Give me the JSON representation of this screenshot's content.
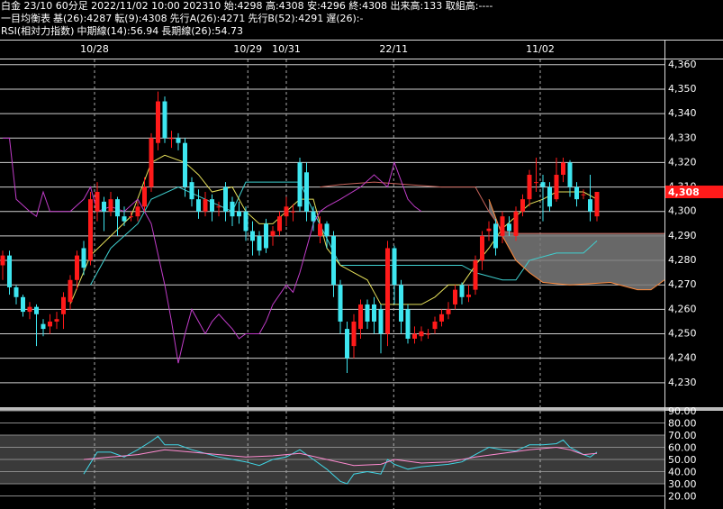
{
  "chart_data": [
    {
      "type": "candlestick",
      "title": "白金 23/10 60分足 2022/11/02 10:00 202310 始:4298 高:4308 安:4296 終:4308 出来高:133 取組高:----",
      "indicator": "一目均衡表",
      "up_color": "#ff1a1a",
      "down_color": "#3ee6f0",
      "cloud_color": "#7a7a7a",
      "open": [
        4278,
        4282,
        4269,
        4265,
        4259,
        4261,
        4254,
        4253,
        4255,
        4258,
        4263,
        4272,
        4285,
        4280,
        4300,
        4304,
        4300,
        4305,
        4298,
        4298,
        4298,
        4302,
        4310,
        4328,
        4345,
        4330,
        4330,
        4328,
        4312,
        4305,
        4300,
        4305,
        4302,
        4310,
        4304,
        4300,
        4300,
        4292,
        4290,
        4295,
        4290,
        4292,
        4298,
        4300,
        4320,
        4316,
        4300,
        4290,
        4295,
        4290,
        4270,
        4252,
        4245,
        4252,
        4262,
        4262,
        4260,
        4250,
        4285,
        4270,
        4260,
        4248,
        4249,
        4250,
        4252,
        4255,
        4258,
        4262,
        4270,
        4265,
        4268,
        4280,
        4292,
        4295,
        4290,
        4295,
        4290,
        4300,
        4305,
        4312,
        4312,
        4310,
        4305,
        4315,
        4320,
        4310,
        4307,
        4305,
        4298
      ],
      "high": [
        4284,
        4284,
        4270,
        4266,
        4263,
        4262,
        4256,
        4258,
        4259,
        4267,
        4274,
        4284,
        4288,
        4308,
        4312,
        4306,
        4308,
        4306,
        4302,
        4300,
        4304,
        4314,
        4332,
        4349,
        4347,
        4333,
        4332,
        4330,
        4314,
        4309,
        4308,
        4307,
        4304,
        4312,
        4306,
        4304,
        4302,
        4296,
        4292,
        4297,
        4294,
        4300,
        4306,
        4303,
        4322,
        4320,
        4302,
        4298,
        4296,
        4292,
        4272,
        4255,
        4258,
        4264,
        4264,
        4265,
        4262,
        4288,
        4286,
        4272,
        4262,
        4253,
        4253,
        4252,
        4257,
        4260,
        4263,
        4270,
        4271,
        4270,
        4282,
        4292,
        4296,
        4297,
        4300,
        4298,
        4302,
        4307,
        4317,
        4322,
        4315,
        4312,
        4322,
        4322,
        4321,
        4312,
        4309,
        4315,
        4308
      ],
      "low": [
        4272,
        4266,
        4262,
        4257,
        4256,
        4245,
        4249,
        4250,
        4252,
        4252,
        4260,
        4268,
        4274,
        4278,
        4296,
        4292,
        4298,
        4290,
        4294,
        4296,
        4296,
        4300,
        4308,
        4325,
        4328,
        4326,
        4325,
        4306,
        4302,
        4297,
        4298,
        4296,
        4298,
        4296,
        4294,
        4295,
        4288,
        4282,
        4282,
        4283,
        4286,
        4290,
        4294,
        4296,
        4300,
        4296,
        4292,
        4287,
        4285,
        4265,
        4250,
        4234,
        4240,
        4248,
        4252,
        4250,
        4242,
        4245,
        4262,
        4250,
        4246,
        4246,
        4247,
        4248,
        4250,
        4253,
        4256,
        4260,
        4262,
        4263,
        4266,
        4276,
        4288,
        4282,
        4287,
        4290,
        4288,
        4298,
        4302,
        4308,
        4296,
        4300,
        4304,
        4312,
        4306,
        4302,
        4305,
        4296,
        4296
      ],
      "close": [
        4282,
        4269,
        4265,
        4259,
        4261,
        4258,
        4252,
        4255,
        4256,
        4265,
        4272,
        4282,
        4277,
        4305,
        4308,
        4300,
        4305,
        4298,
        4296,
        4298,
        4302,
        4310,
        4330,
        4345,
        4330,
        4330,
        4328,
        4310,
        4305,
        4300,
        4305,
        4300,
        4302,
        4300,
        4298,
        4298,
        4292,
        4288,
        4284,
        4285,
        4292,
        4298,
        4302,
        4300,
        4302,
        4300,
        4296,
        4295,
        4290,
        4270,
        4255,
        4240,
        4255,
        4262,
        4255,
        4255,
        4250,
        4285,
        4270,
        4255,
        4248,
        4250,
        4251,
        4250,
        4255,
        4258,
        4260,
        4268,
        4265,
        4266,
        4280,
        4290,
        4293,
        4285,
        4298,
        4292,
        4300,
        4305,
        4315,
        4312,
        4310,
        4302,
        4315,
        4320,
        4310,
        4305,
        4307,
        4300,
        4308
      ],
      "series": [
        {
          "name": "基(26):4287",
          "color": "#3fd0d0",
          "x": [
            13,
            16,
            20,
            22,
            26,
            30,
            34,
            36,
            38,
            44,
            46,
            50,
            54,
            58,
            64,
            68,
            70,
            74,
            76,
            78,
            82,
            86,
            88
          ],
          "values": [
            4270,
            4285,
            4295,
            4305,
            4310,
            4305,
            4300,
            4312,
            4312,
            4312,
            4300,
            4278,
            4278,
            4278,
            4278,
            4278,
            4275,
            4272,
            4272,
            4280,
            4283,
            4283,
            4288
          ]
        },
        {
          "name": "転(9):4308",
          "color": "#e6e05a",
          "x": [
            10,
            13,
            16,
            19,
            22,
            24,
            27,
            29,
            31,
            34,
            36,
            38,
            40,
            42,
            44,
            46,
            48,
            50,
            52,
            54,
            56,
            58,
            60,
            62,
            64,
            66,
            68,
            70,
            72,
            74,
            76,
            78,
            80,
            82,
            84,
            86,
            88
          ],
          "values": [
            4262,
            4282,
            4290,
            4298,
            4320,
            4323,
            4320,
            4315,
            4308,
            4310,
            4300,
            4295,
            4295,
            4300,
            4305,
            4305,
            4285,
            4278,
            4275,
            4272,
            4262,
            4262,
            4262,
            4262,
            4265,
            4270,
            4270,
            4278,
            4285,
            4293,
            4298,
            4303,
            4305,
            4308,
            4308,
            4308,
            4305
          ]
        },
        {
          "name": "先行A(26):4271",
          "color": "#ff8a3d",
          "x": [
            72,
            74,
            76,
            78,
            80,
            84,
            90,
            94,
            96,
            98
          ],
          "values": [
            4305,
            4290,
            4280,
            4275,
            4271,
            4270,
            4271,
            4268,
            4268,
            4272
          ]
        },
        {
          "name": "先行B(52):4291",
          "color": "#c8645a",
          "x": [
            47,
            50,
            55,
            60,
            65,
            70,
            72,
            74,
            76,
            88,
            98
          ],
          "values": [
            4310,
            4311,
            4312,
            4311,
            4310,
            4310,
            4300,
            4292,
            4291,
            4291,
            4291
          ]
        },
        {
          "name": "遅(26):-",
          "color": "#c03cc8",
          "x": [
            0,
            1,
            2,
            4,
            5,
            6,
            7,
            10,
            12,
            13,
            14,
            16,
            18,
            20,
            21,
            22,
            24,
            25,
            26,
            27,
            28,
            30,
            31,
            32,
            34,
            35,
            36,
            38,
            39,
            40,
            42,
            43,
            44,
            46,
            47,
            48,
            50,
            53,
            55,
            57,
            58,
            60,
            61,
            62
          ],
          "values": [
            4330,
            4330,
            4305,
            4300,
            4298,
            4308,
            4300,
            4300,
            4305,
            4310,
            4300,
            4302,
            4300,
            4305,
            4300,
            4295,
            4270,
            4255,
            4238,
            4250,
            4260,
            4250,
            4255,
            4258,
            4252,
            4248,
            4250,
            4250,
            4255,
            4262,
            4270,
            4267,
            4275,
            4295,
            4300,
            4302,
            4305,
            4310,
            4315,
            4310,
            4320,
            4305,
            4302,
            4300
          ]
        }
      ],
      "xlim": [
        -0.4,
        98
      ],
      "xticks": [
        {
          "value": 13.6,
          "label": "10/28"
        },
        {
          "value": 36.3,
          "label": "10/29"
        },
        {
          "value": 42,
          "label": "10/31"
        },
        {
          "value": 57.9,
          "label": "22/11"
        },
        {
          "value": 79.6,
          "label": "11/02"
        }
      ],
      "ylim": [
        4220,
        4362.5
      ],
      "yticks": [
        {
          "value": 4230,
          "label": "4,230"
        },
        {
          "value": 4240,
          "label": "4,240"
        },
        {
          "value": 4250,
          "label": "4,250"
        },
        {
          "value": 4260,
          "label": "4,260"
        },
        {
          "value": 4270,
          "label": "4,270"
        },
        {
          "value": 4280,
          "label": "4,280"
        },
        {
          "value": 4290,
          "label": "4,290"
        },
        {
          "value": 4300,
          "label": "4,300"
        },
        {
          "value": 4310,
          "label": "4,310"
        },
        {
          "value": 4320,
          "label": "4,320"
        },
        {
          "value": 4330,
          "label": "4,330"
        },
        {
          "value": 4340,
          "label": "4,340"
        },
        {
          "value": 4350,
          "label": "4,350"
        },
        {
          "value": 4360,
          "label": "4,360"
        }
      ],
      "last_price": {
        "value": 4308,
        "label": "4,308"
      },
      "grid": true
    },
    {
      "type": "line",
      "title": "RSI(相対力指数)",
      "series": [
        {
          "name": "中期線(14):56.94",
          "color": "#3fd6e6",
          "x": [
            12,
            14,
            16,
            18,
            20,
            22,
            23,
            24,
            26,
            28,
            30,
            32,
            34,
            36,
            38,
            40,
            42,
            44,
            46,
            48,
            50,
            51,
            52,
            54,
            56,
            57,
            58,
            60,
            62,
            64,
            66,
            68,
            70,
            72,
            74,
            76,
            78,
            80,
            82,
            83,
            84,
            86,
            87,
            88
          ],
          "values": [
            38,
            56,
            56,
            52,
            58,
            65,
            69,
            62,
            62,
            58,
            55,
            52,
            50,
            48,
            45,
            50,
            52,
            58,
            50,
            42,
            32,
            30,
            38,
            40,
            38,
            50,
            46,
            42,
            44,
            45,
            46,
            48,
            54,
            60,
            58,
            57,
            62,
            62,
            63,
            66,
            60,
            54,
            52,
            56
          ]
        },
        {
          "name": "長期線(26):54.73",
          "color": "#ff8ad0",
          "x": [
            12,
            16,
            20,
            24,
            28,
            32,
            36,
            40,
            44,
            48,
            52,
            56,
            58,
            62,
            66,
            70,
            74,
            78,
            82,
            84,
            86,
            88
          ],
          "values": [
            50,
            52,
            54,
            58,
            56,
            54,
            52,
            53,
            55,
            50,
            45,
            46,
            50,
            47,
            48,
            52,
            55,
            58,
            60,
            58,
            54,
            55
          ]
        }
      ],
      "xlim": [
        -0.4,
        98
      ],
      "ylim": [
        10,
        90
      ],
      "yticks": [
        {
          "value": 20,
          "label": "20.00"
        },
        {
          "value": 30,
          "label": "30.00"
        },
        {
          "value": 40,
          "label": "40.00"
        },
        {
          "value": 50,
          "label": "50.00"
        },
        {
          "value": 60,
          "label": "60.00"
        },
        {
          "value": 70,
          "label": "70.00"
        },
        {
          "value": 80,
          "label": "80.00"
        },
        {
          "value": 90,
          "label": "90.00"
        }
      ],
      "band": [
        30,
        70
      ],
      "grid": true
    }
  ]
}
